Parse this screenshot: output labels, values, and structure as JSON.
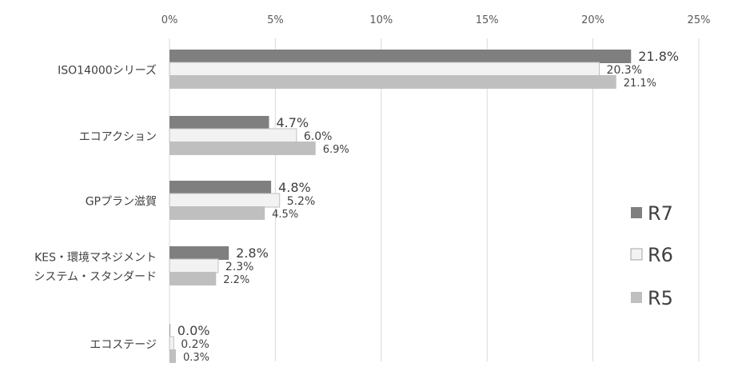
{
  "chart_data": {
    "type": "bar",
    "orientation": "horizontal",
    "categories": [
      [
        "ISO14000シリーズ"
      ],
      [
        "エコアクション"
      ],
      [
        "GPプラン滋賀"
      ],
      [
        "KES・環境マネジメント",
        "システム・スタンダード"
      ],
      [
        "エコステージ"
      ]
    ],
    "series": [
      {
        "name": "R7",
        "values": [
          21.8,
          4.7,
          4.8,
          2.8,
          0.0
        ],
        "labels": [
          "21.8%",
          "4.7%",
          "4.8%",
          "2.8%",
          "0.0%"
        ],
        "color": "#7f7f7f"
      },
      {
        "name": "R6",
        "values": [
          20.3,
          6.0,
          5.2,
          2.3,
          0.2
        ],
        "labels": [
          "20.3%",
          "6.0%",
          "5.2%",
          "2.3%",
          "0.2%"
        ],
        "color": "#f2f2f2"
      },
      {
        "name": "R5",
        "values": [
          21.1,
          6.9,
          4.5,
          2.2,
          0.3
        ],
        "labels": [
          "21.1%",
          "6.9%",
          "4.5%",
          "2.2%",
          "0.3%"
        ],
        "color": "#bfbfbf"
      }
    ],
    "xticks": [
      "0%",
      "5%",
      "10%",
      "15%",
      "20%",
      "25%"
    ],
    "xlim": [
      0,
      25
    ],
    "xaxis_position": "top",
    "grid": "vertical",
    "legend_position": "right"
  }
}
